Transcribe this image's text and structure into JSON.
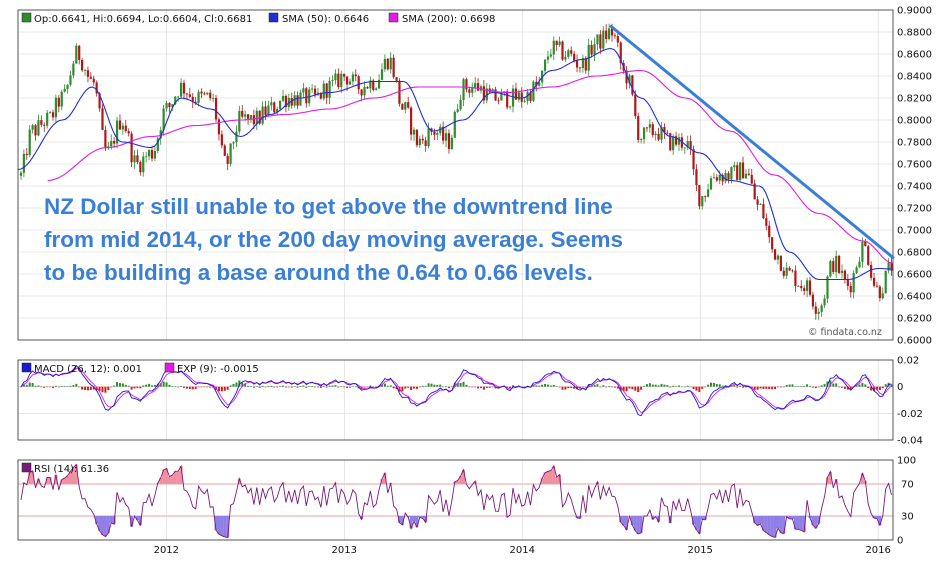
{
  "chart_data": [
    {
      "type": "candlestick",
      "panel": "price",
      "instrument": "NZD/USD",
      "legend": [
        {
          "name": "Op:0.6641, Hi:0.6694, Lo:0.6604, Cl:0.6681",
          "color": "#2e8b2e"
        },
        {
          "name": "SMA (50): 0.6646",
          "color": "#1f2fd8"
        },
        {
          "name": "SMA (200): 0.6698",
          "color": "#e21ce2"
        }
      ],
      "ylim": [
        0.6,
        0.9
      ],
      "y_ticks": [
        "0.9000",
        "0.8800",
        "0.8600",
        "0.8400",
        "0.8200",
        "0.8000",
        "0.7800",
        "0.7600",
        "0.7400",
        "0.7200",
        "0.7000",
        "0.6800",
        "0.6600",
        "0.6400",
        "0.6200",
        "0.6000"
      ],
      "xlim": [
        "2011-03",
        "2016-02"
      ],
      "x_ticks": [
        {
          "label": "2012",
          "x": "2012-01"
        },
        {
          "label": "2013",
          "x": "2013-01"
        },
        {
          "label": "2014",
          "x": "2014-01"
        },
        {
          "label": "2015",
          "x": "2015-01"
        },
        {
          "label": "2016",
          "x": "2016-01"
        }
      ],
      "close_path": [
        [
          "2011-03",
          0.745
        ],
        [
          "2011-04",
          0.79
        ],
        [
          "2011-05",
          0.8
        ],
        [
          "2011-06",
          0.82
        ],
        [
          "2011-07",
          0.86
        ],
        [
          "2011-08",
          0.835
        ],
        [
          "2011-09",
          0.77
        ],
        [
          "2011-10",
          0.8
        ],
        [
          "2011-11",
          0.76
        ],
        [
          "2011-12",
          0.77
        ],
        [
          "2012-01",
          0.81
        ],
        [
          "2012-02",
          0.83
        ],
        [
          "2012-03",
          0.82
        ],
        [
          "2012-04",
          0.82
        ],
        [
          "2012-05",
          0.76
        ],
        [
          "2012-06",
          0.8
        ],
        [
          "2012-07",
          0.8
        ],
        [
          "2012-08",
          0.81
        ],
        [
          "2012-09",
          0.82
        ],
        [
          "2012-10",
          0.82
        ],
        [
          "2012-11",
          0.82
        ],
        [
          "2012-12",
          0.83
        ],
        [
          "2013-01",
          0.84
        ],
        [
          "2013-02",
          0.83
        ],
        [
          "2013-03",
          0.835
        ],
        [
          "2013-04",
          0.855
        ],
        [
          "2013-05",
          0.81
        ],
        [
          "2013-06",
          0.78
        ],
        [
          "2013-07",
          0.79
        ],
        [
          "2013-08",
          0.78
        ],
        [
          "2013-09",
          0.83
        ],
        [
          "2013-10",
          0.83
        ],
        [
          "2013-11",
          0.82
        ],
        [
          "2013-12",
          0.82
        ],
        [
          "2014-01",
          0.82
        ],
        [
          "2014-02",
          0.83
        ],
        [
          "2014-03",
          0.865
        ],
        [
          "2014-04",
          0.86
        ],
        [
          "2014-05",
          0.85
        ],
        [
          "2014-06",
          0.87
        ],
        [
          "2014-07",
          0.88
        ],
        [
          "2014-08",
          0.84
        ],
        [
          "2014-09",
          0.785
        ],
        [
          "2014-10",
          0.79
        ],
        [
          "2014-11",
          0.78
        ],
        [
          "2014-12",
          0.78
        ],
        [
          "2015-01",
          0.73
        ],
        [
          "2015-02",
          0.75
        ],
        [
          "2015-03",
          0.75
        ],
        [
          "2015-04",
          0.755
        ],
        [
          "2015-05",
          0.72
        ],
        [
          "2015-06",
          0.68
        ],
        [
          "2015-07",
          0.66
        ],
        [
          "2015-08",
          0.65
        ],
        [
          "2015-09",
          0.63
        ],
        [
          "2015-10",
          0.67
        ],
        [
          "2015-11",
          0.65
        ],
        [
          "2015-12",
          0.685
        ],
        [
          "2016-01",
          0.645
        ],
        [
          "2016-02",
          0.668
        ]
      ],
      "sma50_path": [
        [
          "2011-03",
          0.755
        ],
        [
          "2011-06",
          0.8
        ],
        [
          "2011-08",
          0.83
        ],
        [
          "2011-10",
          0.78
        ],
        [
          "2011-12",
          0.775
        ],
        [
          "2012-02",
          0.82
        ],
        [
          "2012-04",
          0.81
        ],
        [
          "2012-06",
          0.785
        ],
        [
          "2012-08",
          0.805
        ],
        [
          "2012-10",
          0.82
        ],
        [
          "2012-12",
          0.825
        ],
        [
          "2013-03",
          0.835
        ],
        [
          "2013-05",
          0.835
        ],
        [
          "2013-07",
          0.79
        ],
        [
          "2013-09",
          0.8
        ],
        [
          "2013-11",
          0.825
        ],
        [
          "2014-01",
          0.82
        ],
        [
          "2014-03",
          0.845
        ],
        [
          "2014-05",
          0.855
        ],
        [
          "2014-07",
          0.865
        ],
        [
          "2014-09",
          0.82
        ],
        [
          "2014-11",
          0.785
        ],
        [
          "2015-01",
          0.77
        ],
        [
          "2015-03",
          0.745
        ],
        [
          "2015-05",
          0.74
        ],
        [
          "2015-07",
          0.68
        ],
        [
          "2015-09",
          0.655
        ],
        [
          "2015-11",
          0.655
        ],
        [
          "2016-01",
          0.665
        ],
        [
          "2016-02",
          0.6646
        ]
      ],
      "sma200_path": [
        [
          "2011-05",
          0.745
        ],
        [
          "2011-09",
          0.775
        ],
        [
          "2011-12",
          0.785
        ],
        [
          "2012-03",
          0.795
        ],
        [
          "2012-06",
          0.8
        ],
        [
          "2012-09",
          0.805
        ],
        [
          "2012-12",
          0.81
        ],
        [
          "2013-03",
          0.82
        ],
        [
          "2013-06",
          0.83
        ],
        [
          "2013-09",
          0.83
        ],
        [
          "2013-12",
          0.825
        ],
        [
          "2014-03",
          0.83
        ],
        [
          "2014-06",
          0.84
        ],
        [
          "2014-09",
          0.845
        ],
        [
          "2014-12",
          0.82
        ],
        [
          "2015-03",
          0.79
        ],
        [
          "2015-06",
          0.75
        ],
        [
          "2015-09",
          0.715
        ],
        [
          "2015-12",
          0.69
        ],
        [
          "2016-02",
          0.6698
        ]
      ],
      "trendline": {
        "from": [
          "2014-07",
          0.885
        ],
        "to": [
          "2016-02",
          0.675
        ]
      },
      "annotation": [
        "NZ Dollar still unable to get above the downtrend line",
        "from mid 2014, or the 200 day moving average. Seems",
        "to be building a base around the 0.64 to 0.66 levels."
      ],
      "source_note": "© findata.co.nz"
    },
    {
      "type": "line",
      "panel": "macd",
      "legend": [
        {
          "name": "MACD (26, 12): 0.001",
          "color": "#1a1ad0"
        },
        {
          "name": "EXP (9): -0.0015",
          "color": "#e21ce2"
        }
      ],
      "ylim": [
        -0.04,
        0.02
      ],
      "y_ticks": [
        "0.02",
        "0",
        "-0.02",
        "-0.04"
      ],
      "histogram_colors": {
        "positive": "#2e8b2e",
        "negative": "#d11a1a"
      }
    },
    {
      "type": "line",
      "panel": "rsi",
      "legend": [
        {
          "name": "RSI (14): 61.36",
          "color": "#7a1a7a"
        }
      ],
      "ylim": [
        0,
        100
      ],
      "y_ticks": [
        "100",
        "70",
        "30",
        "0"
      ],
      "overbought": 70,
      "oversold": 30
    }
  ],
  "colors": {
    "bull": "#2e8b2e",
    "bear": "#b01818",
    "sma50": "#1f2fd8",
    "sma200": "#e21ce2",
    "trend": "#3a7fd6",
    "grid": "#d6d6d6"
  }
}
